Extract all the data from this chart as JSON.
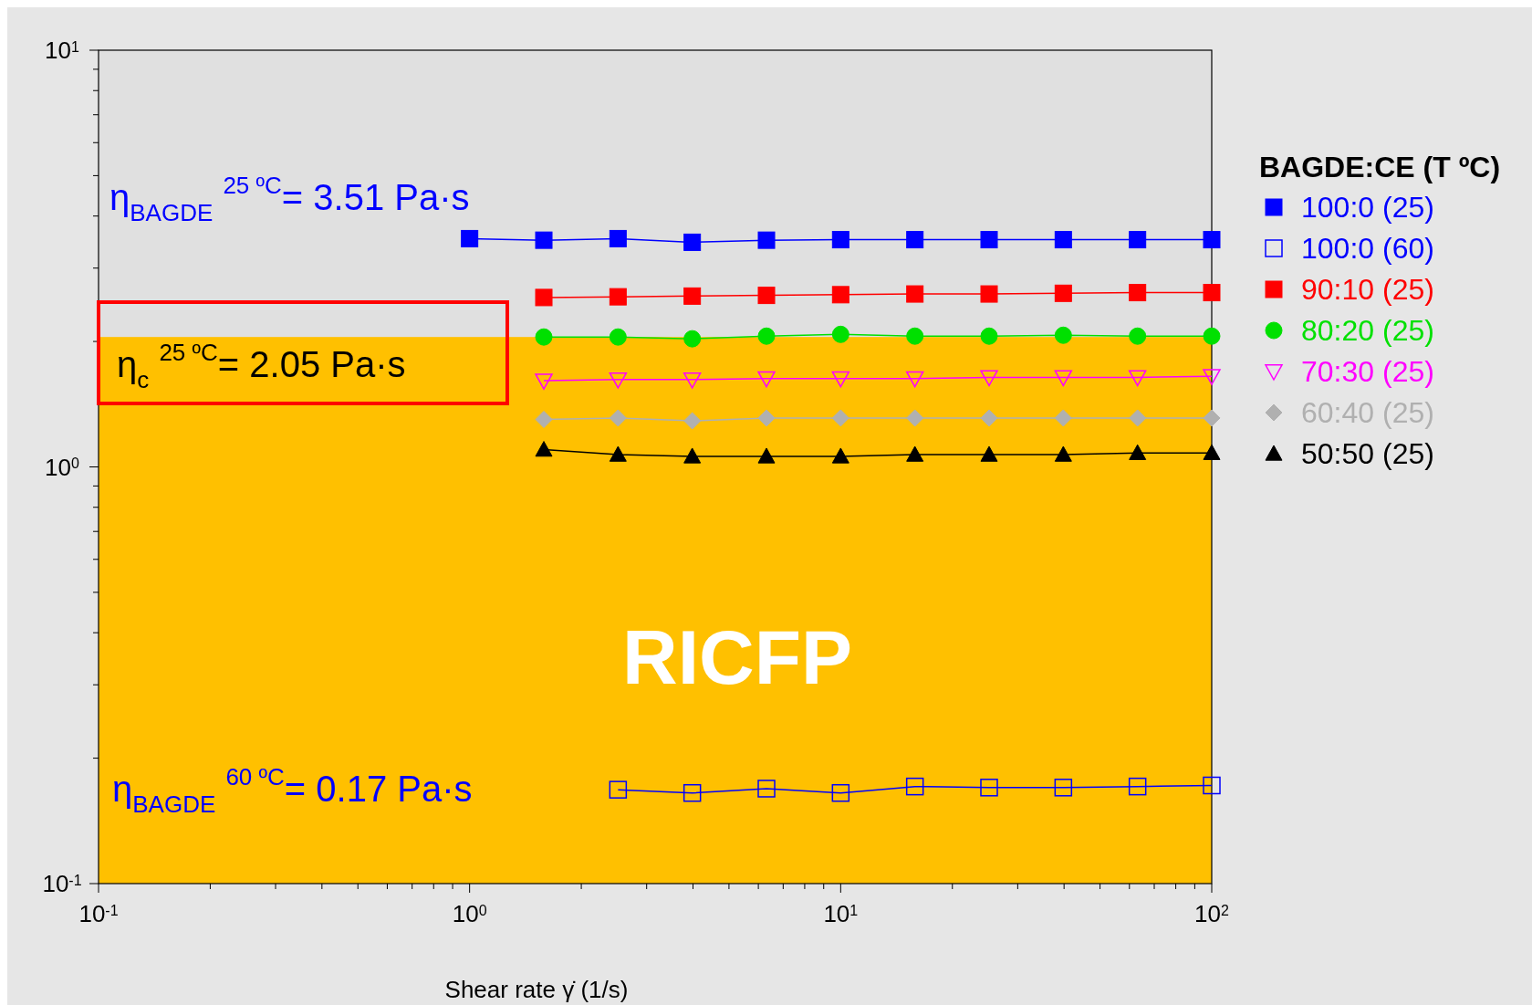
{
  "chart_data": {
    "type": "line",
    "log": "xy",
    "xlabel": "Shear rate     γ̇  (1/s)",
    "legend_title": "BAGDE:CE (T ºC)",
    "legend": "right",
    "grid": false,
    "xlim": [
      0.1,
      100
    ],
    "ylim": [
      0.1,
      10
    ],
    "xticks": [
      {
        "value": 0.1,
        "label": "10$^{-1}$"
      },
      {
        "value": 0.2,
        "label": null
      },
      {
        "value": 0.3,
        "label": null
      },
      {
        "value": 0.4,
        "label": null
      },
      {
        "value": 0.5,
        "label": null
      },
      {
        "value": 0.6,
        "label": null
      },
      {
        "value": 0.7,
        "label": null
      },
      {
        "value": 0.8,
        "label": null
      },
      {
        "value": 0.9,
        "label": null
      },
      {
        "value": 1,
        "label": "10$^{0}$"
      },
      {
        "value": 2,
        "label": null
      },
      {
        "value": 3,
        "label": null
      },
      {
        "value": 4,
        "label": null
      },
      {
        "value": 5,
        "label": null
      },
      {
        "value": 6,
        "label": null
      },
      {
        "value": 7,
        "label": null
      },
      {
        "value": 8,
        "label": null
      },
      {
        "value": 9,
        "label": null
      },
      {
        "value": 10,
        "label": "10$^{1}$"
      },
      {
        "value": 20,
        "label": null
      },
      {
        "value": 30,
        "label": null
      },
      {
        "value": 40,
        "label": null
      },
      {
        "value": 50,
        "label": null
      },
      {
        "value": 60,
        "label": null
      },
      {
        "value": 70,
        "label": null
      },
      {
        "value": 80,
        "label": null
      },
      {
        "value": 90,
        "label": null
      },
      {
        "value": 100,
        "label": "10$^{2}$"
      }
    ],
    "yticks": [
      {
        "value": 0.1,
        "label": "10$^{-1}$"
      },
      {
        "value": 0.2,
        "label": null
      },
      {
        "value": 0.3,
        "label": null
      },
      {
        "value": 0.4,
        "label": null
      },
      {
        "value": 0.5,
        "label": null
      },
      {
        "value": 0.6,
        "label": null
      },
      {
        "value": 0.7,
        "label": null
      },
      {
        "value": 0.8,
        "label": null
      },
      {
        "value": 0.9,
        "label": null
      },
      {
        "value": 1,
        "label": "10$^{0}$"
      },
      {
        "value": 2,
        "label": null
      },
      {
        "value": 3,
        "label": null
      },
      {
        "value": 4,
        "label": null
      },
      {
        "value": 5,
        "label": null
      },
      {
        "value": 6,
        "label": null
      },
      {
        "value": 7,
        "label": null
      },
      {
        "value": 8,
        "label": null
      },
      {
        "value": 9,
        "label": null
      },
      {
        "value": 10,
        "label": "10$^{1}$"
      }
    ],
    "bands": [
      {
        "axis": "y",
        "from": 0.1,
        "to": 2.05,
        "label": "RICFP",
        "color": "#ffc000"
      }
    ],
    "annotations": [
      "η$_{BAGDE}$ $^{25 ºC}$= 3.51 Pa·s",
      "η$_{c}$ $^{25 ºC}$= 2.05 Pa·s",
      "η$_{BAGDE}$ $^{60 ºC}$= 0.17 Pa·s"
    ],
    "series": [
      {
        "name": "100:0 (25)",
        "color": "#0000ff",
        "marker": "square",
        "x": [
          1,
          1.585,
          2.512,
          3.981,
          6.31,
          10,
          15.85,
          25.12,
          39.81,
          63.1,
          100
        ],
        "values": [
          3.53,
          3.5,
          3.53,
          3.46,
          3.5,
          3.51,
          3.51,
          3.51,
          3.51,
          3.51,
          3.51
        ]
      },
      {
        "name": "100:0 (60)",
        "color": "#0000ff",
        "marker": "square-open",
        "x": [
          2.512,
          3.981,
          6.31,
          10,
          15.85,
          25.12,
          39.81,
          63.1,
          100
        ],
        "values": [
          0.168,
          0.165,
          0.169,
          0.165,
          0.171,
          0.17,
          0.17,
          0.171,
          0.172
        ]
      },
      {
        "name": "90:10 (25)",
        "color": "#ff0000",
        "marker": "square",
        "x": [
          1.585,
          2.512,
          3.981,
          6.31,
          10,
          15.85,
          25.12,
          39.81,
          63.1,
          100
        ],
        "values": [
          2.55,
          2.56,
          2.57,
          2.58,
          2.59,
          2.6,
          2.6,
          2.61,
          2.62,
          2.62
        ]
      },
      {
        "name": "80:20 (25)",
        "color": "#00e000",
        "marker": "circle",
        "x": [
          1.585,
          2.512,
          3.981,
          6.31,
          10,
          15.85,
          25.12,
          39.81,
          63.1,
          100
        ],
        "values": [
          2.05,
          2.05,
          2.03,
          2.06,
          2.08,
          2.06,
          2.06,
          2.07,
          2.06,
          2.06
        ]
      },
      {
        "name": "70:30 (25)",
        "color": "#ff00ff",
        "marker": "triangle-down-open",
        "x": [
          1.585,
          2.512,
          3.981,
          6.31,
          10,
          15.85,
          25.12,
          39.81,
          63.1,
          100
        ],
        "values": [
          1.61,
          1.62,
          1.62,
          1.63,
          1.63,
          1.63,
          1.64,
          1.64,
          1.64,
          1.65
        ]
      },
      {
        "name": "60:40 (25)",
        "color": "#b0b0b0",
        "marker": "diamond",
        "x": [
          1.585,
          2.512,
          3.981,
          6.31,
          10,
          15.85,
          25.12,
          39.81,
          63.1,
          100
        ],
        "values": [
          1.3,
          1.31,
          1.29,
          1.31,
          1.31,
          1.31,
          1.31,
          1.31,
          1.31,
          1.31
        ]
      },
      {
        "name": "50:50 (25)",
        "color": "#000000",
        "marker": "triangle",
        "x": [
          1.585,
          2.512,
          3.981,
          6.31,
          10,
          15.85,
          25.12,
          39.81,
          63.1,
          100
        ],
        "values": [
          1.1,
          1.07,
          1.06,
          1.06,
          1.06,
          1.07,
          1.07,
          1.07,
          1.08,
          1.08
        ]
      }
    ]
  }
}
